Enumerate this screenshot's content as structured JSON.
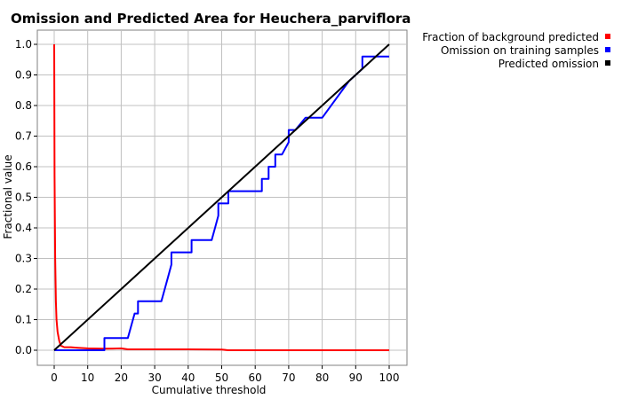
{
  "chart_data": {
    "type": "line",
    "title": "Omission and Predicted Area for Heuchera_parviflora",
    "xlabel": "Cumulative threshold",
    "ylabel": "Fractional value",
    "xlim": [
      0,
      100
    ],
    "ylim": [
      0,
      1.05
    ],
    "xticks": [
      "0",
      "10",
      "20",
      "30",
      "40",
      "50",
      "60",
      "70",
      "80",
      "90",
      "100"
    ],
    "yticks": [
      "0.0",
      "0.1",
      "0.2",
      "0.3",
      "0.4",
      "0.5",
      "0.6",
      "0.7",
      "0.8",
      "0.9",
      "1.0"
    ],
    "grid": true,
    "legend_position": "top-right",
    "series": [
      {
        "name": "Fraction of background predicted",
        "color": "#ff0000",
        "x": [
          0,
          0.1,
          0.3,
          0.5,
          0.7,
          1,
          1.5,
          2,
          3,
          5,
          7,
          10,
          15,
          20,
          22,
          30,
          40,
          50,
          52,
          60,
          70,
          80,
          90,
          100
        ],
        "y": [
          1.0,
          0.57,
          0.3,
          0.16,
          0.1,
          0.06,
          0.03,
          0.015,
          0.01,
          0.01,
          0.008,
          0.006,
          0.005,
          0.006,
          0.003,
          0.003,
          0.003,
          0.002,
          0.0,
          0.0,
          0.0,
          0.0,
          0.0,
          0.0
        ]
      },
      {
        "name": "Omission on training samples",
        "color": "#0000ff",
        "x": [
          0,
          15,
          15,
          22,
          23,
          24,
          25,
          25,
          32,
          33,
          34,
          35,
          35,
          41,
          41,
          47,
          48,
          49,
          49,
          52,
          52,
          62,
          62,
          64,
          64,
          66,
          66,
          68,
          69,
          70,
          70,
          72,
          75,
          80,
          88,
          92,
          92,
          100
        ],
        "y": [
          0.0,
          0.0,
          0.04,
          0.04,
          0.08,
          0.12,
          0.12,
          0.16,
          0.16,
          0.2,
          0.24,
          0.28,
          0.32,
          0.32,
          0.36,
          0.36,
          0.4,
          0.44,
          0.48,
          0.48,
          0.52,
          0.52,
          0.56,
          0.56,
          0.6,
          0.6,
          0.64,
          0.64,
          0.66,
          0.68,
          0.72,
          0.72,
          0.76,
          0.76,
          0.88,
          0.92,
          0.96,
          0.96
        ]
      },
      {
        "name": "Predicted omission",
        "color": "#000000",
        "x": [
          0,
          100
        ],
        "y": [
          0.0,
          1.0
        ]
      }
    ]
  }
}
